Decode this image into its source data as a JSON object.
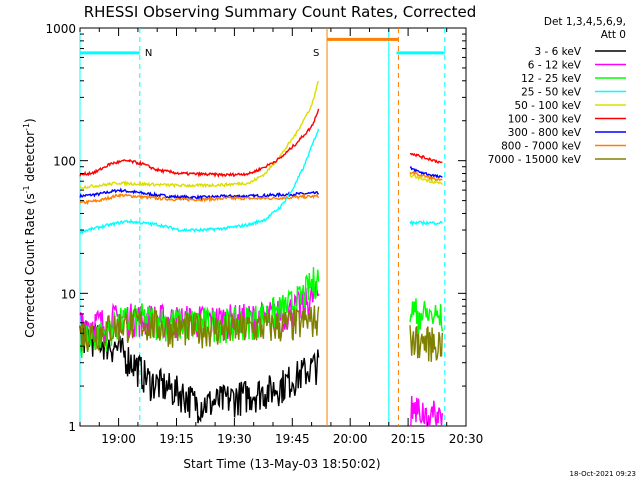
{
  "chart_data": {
    "type": "line",
    "title": "RHESSI Observing Summary Count Rates, Corrected",
    "xlabel": "Start Time (13-May-03 18:50:02)",
    "ylabel_main": "Corrected Count Rate (s",
    "ylabel_exp1": "-1",
    "ylabel_mid": " detector",
    "ylabel_exp2": "-1",
    "ylabel_end": ")",
    "yscale": "log",
    "ylim": [
      1,
      1000
    ],
    "xlim_minutes": [
      0,
      100
    ],
    "x_ticks": [
      {
        "label": "19:00",
        "minutes": 10
      },
      {
        "label": "19:15",
        "minutes": 25
      },
      {
        "label": "19:30",
        "minutes": 40
      },
      {
        "label": "19:45",
        "minutes": 55
      },
      {
        "label": "20:00",
        "minutes": 70
      },
      {
        "label": "20:15",
        "minutes": 85
      },
      {
        "label": "20:30",
        "minutes": 100
      }
    ],
    "y_ticks": [
      {
        "label": "1",
        "value": 1
      },
      {
        "label": "10",
        "value": 10
      },
      {
        "label": "100",
        "value": 100
      },
      {
        "label": "1000",
        "value": 1000
      }
    ],
    "legend_header": [
      "Det 1,3,4,5,6,9,",
      "Att 0"
    ],
    "series": [
      {
        "name": "3 - 6 keV",
        "color": "#000000",
        "values": [
          [
            0,
            5
          ],
          [
            5,
            4.5
          ],
          [
            9,
            4
          ],
          [
            14,
            3
          ],
          [
            18,
            2.2
          ],
          [
            22,
            2
          ],
          [
            26,
            1.8
          ],
          [
            30,
            1.5
          ],
          [
            34,
            1.5
          ],
          [
            38,
            1.6
          ],
          [
            42,
            1.7
          ],
          [
            46,
            1.8
          ],
          [
            50,
            1.9
          ],
          [
            54,
            2.2
          ],
          [
            62,
            3
          ]
        ]
      },
      {
        "name": "6 - 12 keV",
        "color": "#ff00ff",
        "values": [
          [
            0,
            6
          ],
          [
            6,
            6
          ],
          [
            10,
            6.5
          ],
          [
            16,
            6.5
          ],
          [
            24,
            6.3
          ],
          [
            32,
            6.3
          ],
          [
            40,
            6.4
          ],
          [
            46,
            6.5
          ],
          [
            52,
            7
          ],
          [
            57,
            8
          ],
          [
            62,
            10
          ]
        ]
      },
      {
        "name": "12 - 25 keV",
        "color": "#00ff00",
        "values": [
          [
            0,
            4.5
          ],
          [
            6,
            5
          ],
          [
            10,
            6
          ],
          [
            16,
            6.5
          ],
          [
            24,
            6
          ],
          [
            32,
            6
          ],
          [
            40,
            6
          ],
          [
            46,
            6.5
          ],
          [
            52,
            7.5
          ],
          [
            57,
            9
          ],
          [
            62,
            14
          ]
        ]
      },
      {
        "name": "25 - 50 keV",
        "color": "#00ffff",
        "values": [
          [
            0,
            29
          ],
          [
            4,
            31
          ],
          [
            8,
            33
          ],
          [
            12,
            35
          ],
          [
            16,
            34
          ],
          [
            20,
            33
          ],
          [
            26,
            30
          ],
          [
            32,
            30
          ],
          [
            38,
            31
          ],
          [
            44,
            33
          ],
          [
            48,
            36
          ],
          [
            52,
            45
          ],
          [
            55,
            60
          ],
          [
            58,
            90
          ],
          [
            62,
            180
          ]
        ]
      },
      {
        "name": "50 - 100 keV",
        "color": "#dddd00",
        "values": [
          [
            0,
            63
          ],
          [
            5,
            65
          ],
          [
            10,
            68
          ],
          [
            14,
            67
          ],
          [
            20,
            66
          ],
          [
            26,
            65
          ],
          [
            32,
            65
          ],
          [
            38,
            66
          ],
          [
            44,
            68
          ],
          [
            48,
            80
          ],
          [
            52,
            110
          ],
          [
            56,
            160
          ],
          [
            60,
            260
          ],
          [
            62,
            420
          ]
        ]
      },
      {
        "name": "100 - 300 keV",
        "color": "#ff0000",
        "values": [
          [
            0,
            78
          ],
          [
            4,
            82
          ],
          [
            8,
            95
          ],
          [
            12,
            100
          ],
          [
            16,
            95
          ],
          [
            20,
            85
          ],
          [
            26,
            80
          ],
          [
            32,
            79
          ],
          [
            38,
            78
          ],
          [
            44,
            80
          ],
          [
            48,
            90
          ],
          [
            52,
            105
          ],
          [
            56,
            135
          ],
          [
            60,
            180
          ],
          [
            62,
            250
          ]
        ]
      },
      {
        "name": "300 - 800 keV",
        "color": "#0000ff",
        "values": [
          [
            0,
            54
          ],
          [
            5,
            56
          ],
          [
            10,
            60
          ],
          [
            14,
            58
          ],
          [
            20,
            55
          ],
          [
            26,
            53
          ],
          [
            32,
            53
          ],
          [
            38,
            54
          ],
          [
            44,
            54
          ],
          [
            50,
            55
          ],
          [
            56,
            56
          ],
          [
            62,
            57
          ]
        ]
      },
      {
        "name": "800 - 7000 keV",
        "color": "#ff8000",
        "values": [
          [
            0,
            48
          ],
          [
            5,
            50
          ],
          [
            10,
            55
          ],
          [
            14,
            54
          ],
          [
            20,
            52
          ],
          [
            26,
            51
          ],
          [
            32,
            51
          ],
          [
            38,
            52
          ],
          [
            44,
            52
          ],
          [
            50,
            52
          ],
          [
            56,
            53
          ],
          [
            62,
            54
          ]
        ]
      },
      {
        "name": "7000 - 15000 keV",
        "color": "#808000",
        "values": [
          [
            0,
            5
          ],
          [
            6,
            5.2
          ],
          [
            10,
            5.8
          ],
          [
            16,
            6
          ],
          [
            24,
            5.5
          ],
          [
            32,
            5.5
          ],
          [
            40,
            5.4
          ],
          [
            46,
            5.6
          ],
          [
            52,
            5.8
          ],
          [
            57,
            6
          ],
          [
            62,
            6.5
          ]
        ]
      }
    ],
    "post_gap_series": [
      {
        "color": "#ff0000",
        "values": [
          [
            85.5,
            115
          ],
          [
            88,
            108
          ],
          [
            91,
            102
          ],
          [
            94,
            96
          ]
        ]
      },
      {
        "color": "#0000ff",
        "values": [
          [
            85.5,
            88
          ],
          [
            88,
            82
          ],
          [
            91,
            78
          ],
          [
            94,
            74
          ]
        ]
      },
      {
        "color": "#ff8000",
        "values": [
          [
            85.5,
            82
          ],
          [
            88,
            78
          ],
          [
            91,
            74
          ],
          [
            94,
            70
          ]
        ]
      },
      {
        "color": "#dddd00",
        "values": [
          [
            85.5,
            78
          ],
          [
            88,
            74
          ],
          [
            91,
            70
          ],
          [
            94,
            67
          ]
        ]
      },
      {
        "color": "#00ffff",
        "values": [
          [
            85.5,
            34
          ],
          [
            88,
            34
          ],
          [
            91,
            34
          ],
          [
            94,
            34
          ]
        ]
      },
      {
        "color": "#00ff00",
        "values": [
          [
            85.5,
            7.5
          ],
          [
            88,
            7
          ],
          [
            91,
            6.8
          ],
          [
            94,
            6.5
          ]
        ]
      },
      {
        "color": "#808000",
        "values": [
          [
            85.5,
            4.5
          ],
          [
            88,
            4.4
          ],
          [
            91,
            4.3
          ],
          [
            94,
            4.2
          ]
        ]
      },
      {
        "color": "#ff00ff",
        "values": [
          [
            85.5,
            1.3
          ],
          [
            88,
            1.3
          ],
          [
            91,
            1.2
          ],
          [
            94,
            1.2
          ]
        ]
      }
    ],
    "annotations": {
      "night_label": "N",
      "saa_label": "S",
      "night_bars": [
        [
          0,
          15.5
        ],
        [
          82,
          94.5
        ]
      ],
      "saa_bar": [
        64,
        82.5
      ],
      "cyan_vlines_solid": [
        0,
        80
      ],
      "cyan_vlines_dashed": [
        15.5,
        94.5
      ],
      "orange_vline_solid": [
        64
      ],
      "orange_vline_dashed": [
        82.5
      ],
      "bar_level": 650
    },
    "timestamp": "18-Oct-2021 09:23"
  }
}
